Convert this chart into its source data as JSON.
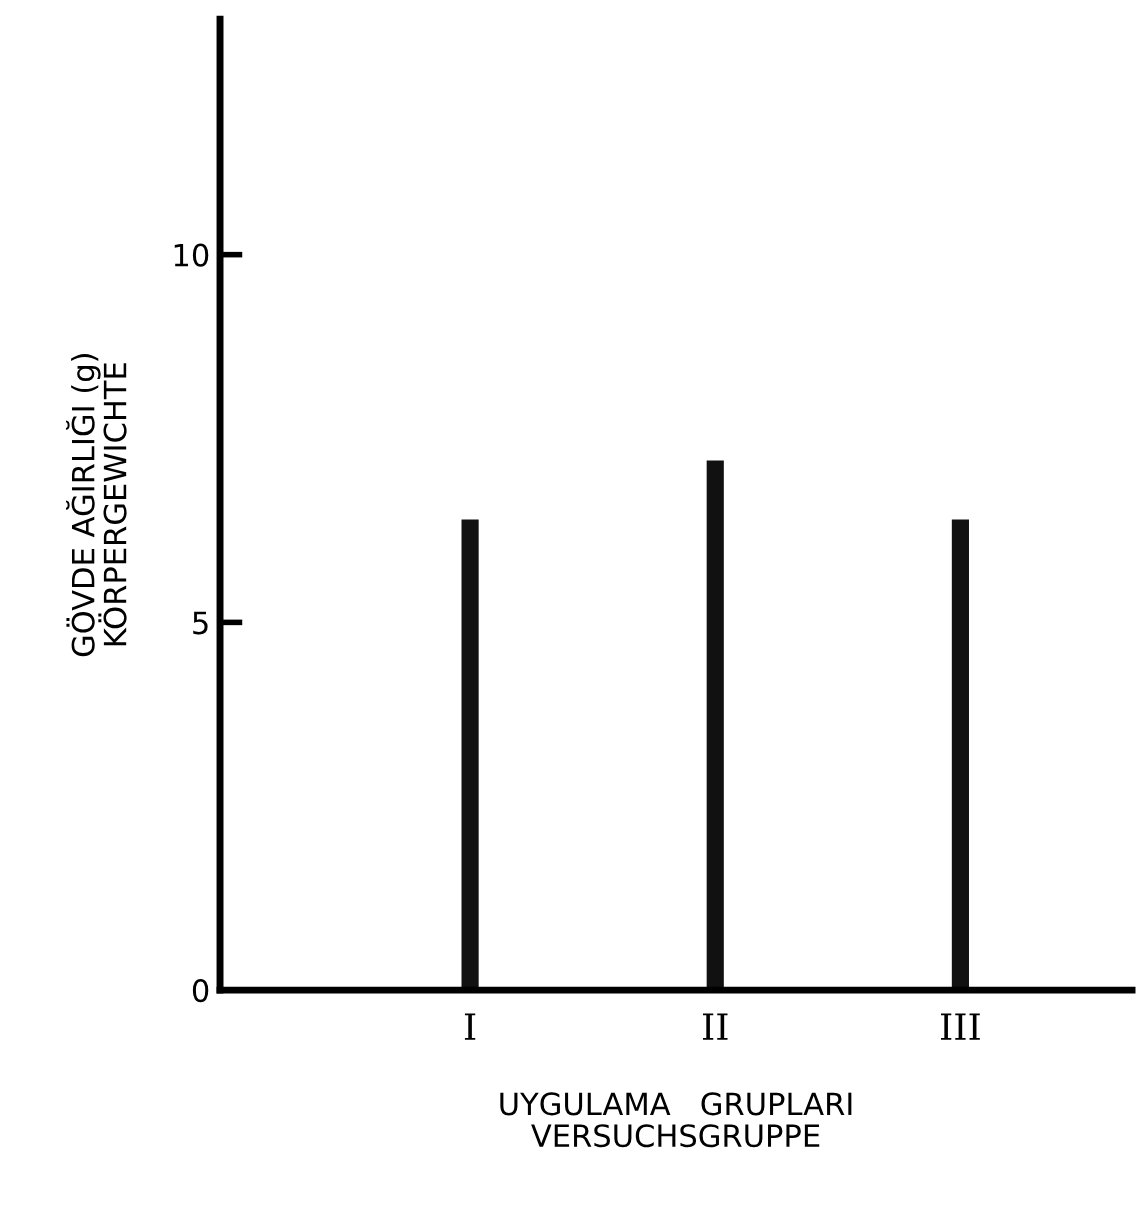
{
  "chart_data": {
    "type": "bar",
    "categories": [
      "I",
      "II",
      "III"
    ],
    "values": [
      6.4,
      7.2,
      6.4
    ],
    "color": "#111111",
    "ylim": [
      0,
      13.2
    ],
    "yticks": [
      0,
      5,
      10
    ],
    "xlabel": "UYGULAMA   GRUPLARI\nVERSUCHSGRUPPE",
    "ylabel": "GÖVDE AĞIRLIĞI (g)\nKÖRPERGEWICHTE",
    "grid": false,
    "legend": false
  }
}
